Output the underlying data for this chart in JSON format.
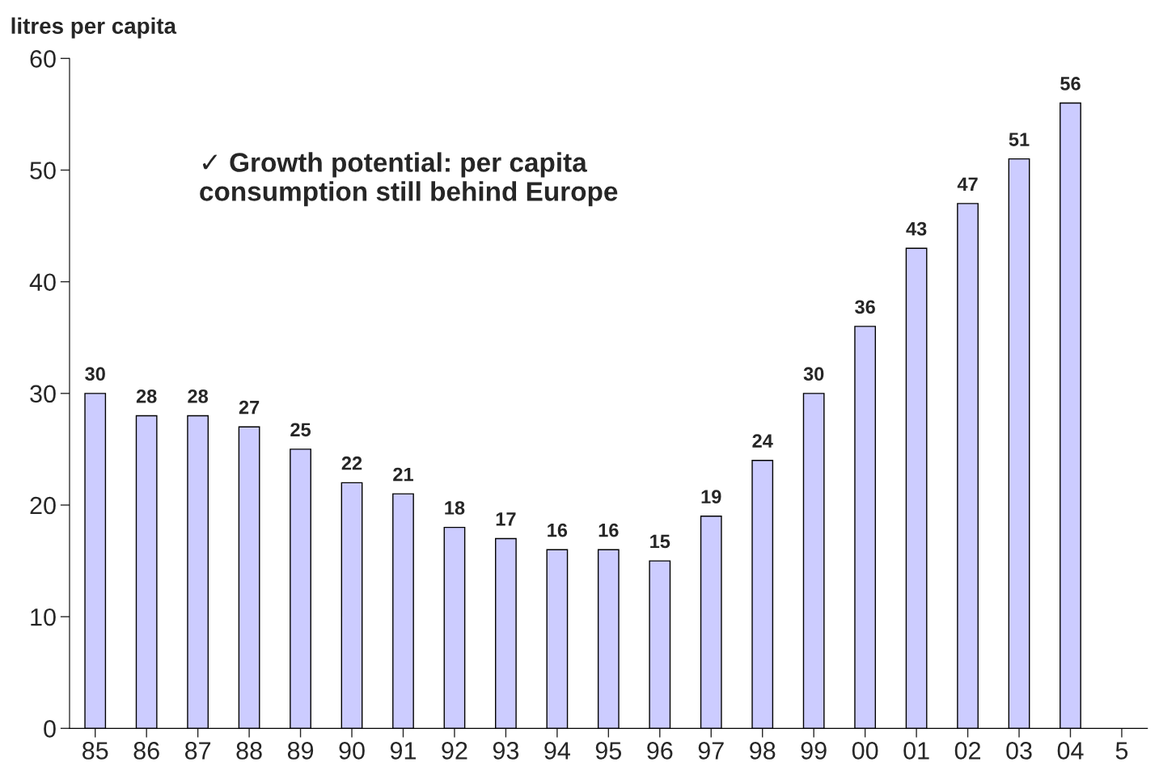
{
  "chart_data": {
    "type": "bar",
    "ylabel": "litres per capita",
    "categories": [
      "85",
      "86",
      "87",
      "88",
      "89",
      "90",
      "91",
      "92",
      "93",
      "94",
      "95",
      "96",
      "97",
      "98",
      "99",
      "00",
      "01",
      "02",
      "03",
      "04",
      "5"
    ],
    "values": [
      30,
      28,
      28,
      27,
      25,
      22,
      21,
      18,
      17,
      16,
      16,
      15,
      19,
      24,
      30,
      36,
      43,
      47,
      51,
      56,
      null
    ],
    "color": "#ccccff",
    "ylim": [
      0,
      60
    ],
    "yticks": [
      0,
      10,
      20,
      30,
      40,
      50,
      60
    ],
    "grid": false,
    "data_labels": true,
    "annotations": [
      "✓ Growth potential: per capita\nconsumption still behind Europe"
    ]
  }
}
